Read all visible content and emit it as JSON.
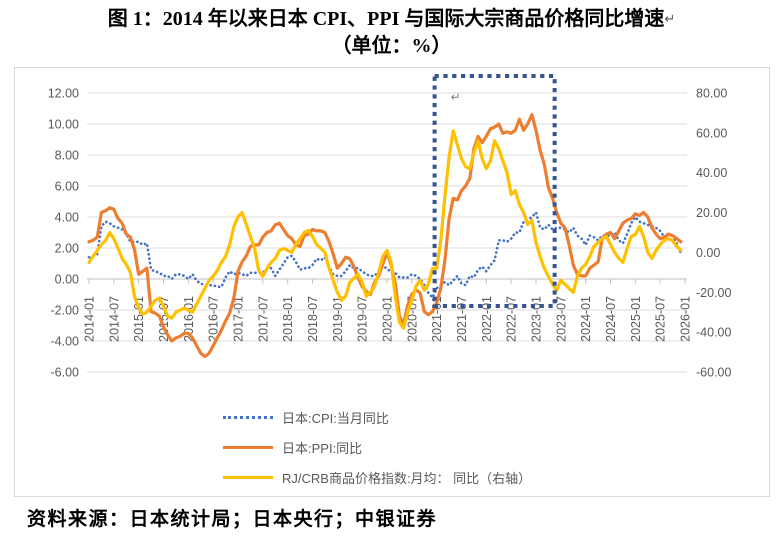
{
  "page": {
    "title_line1": "图 1：2014 年以来日本 CPI、PPI 与国际大宗商品价格同比增速",
    "title_return_mark": "↵",
    "title_line2": "（单位：%）",
    "source": "资料来源：日本统计局；日本央行；中银证券"
  },
  "colors": {
    "cpi": "#4472C4",
    "ppi": "#ED7D31",
    "crb": "#FFC000",
    "grid": "#DCDCDC",
    "axis_line": "#BFBFBF",
    "axis_text": "#595959",
    "highlight_box": "#35558F"
  },
  "chart_data": {
    "type": "line",
    "title": "2014年以来日本CPI、PPI与国际大宗商品价格同比增速（单位：%）",
    "x_monthly_start": "2014-01",
    "x_monthly_end": "2025-12",
    "x_tick_labels": [
      "2014-01",
      "2014-07",
      "2015-01",
      "2015-07",
      "2016-01",
      "2016-07",
      "2017-01",
      "2017-07",
      "2018-01",
      "2018-07",
      "2019-01",
      "2019-07",
      "2020-01",
      "2020-07",
      "2021-01",
      "2021-07",
      "2022-01",
      "2022-07",
      "2023-01",
      "2023-07",
      "2024-01",
      "2024-07",
      "2025-01",
      "2025-07",
      "2026-01"
    ],
    "left_axis": {
      "min": -6,
      "max": 12,
      "step": 2,
      "tick_labels": [
        "12.00",
        "10.00",
        "8.00",
        "6.00",
        "4.00",
        "2.00",
        "0.00",
        "-2.00",
        "-4.00",
        "-6.00"
      ]
    },
    "right_axis": {
      "min": -60,
      "max": 80,
      "step": 20,
      "tick_labels": [
        "80.00",
        "60.00",
        "40.00",
        "20.00",
        "0.00",
        "-20.00",
        "-40.00",
        "-60.00"
      ]
    },
    "grid": true,
    "legend_position": "bottom",
    "series": [
      {
        "key": "cpi",
        "name": "日本:CPI:当月同比",
        "axis": "left",
        "style": "dotted",
        "color": "#4472C4",
        "values": [
          1.4,
          1.5,
          1.6,
          3.4,
          3.7,
          3.6,
          3.4,
          3.3,
          3.2,
          2.9,
          2.4,
          2.4,
          2.4,
          2.2,
          2.3,
          0.6,
          0.5,
          0.4,
          0.2,
          0.2,
          0.0,
          0.3,
          0.3,
          0.2,
          0.0,
          0.3,
          -0.1,
          -0.3,
          -0.4,
          -0.4,
          -0.4,
          -0.5,
          -0.5,
          0.1,
          0.5,
          0.3,
          0.4,
          0.3,
          0.2,
          0.4,
          0.4,
          0.4,
          0.4,
          0.7,
          0.7,
          0.2,
          0.6,
          1.0,
          1.4,
          1.5,
          1.1,
          0.6,
          0.7,
          0.7,
          0.9,
          1.3,
          1.2,
          1.4,
          0.8,
          0.3,
          0.2,
          0.2,
          0.5,
          0.9,
          0.7,
          0.7,
          0.5,
          0.3,
          0.2,
          0.2,
          0.5,
          0.8,
          0.7,
          0.4,
          0.4,
          0.1,
          0.1,
          0.1,
          0.3,
          0.2,
          0.0,
          -0.4,
          -0.9,
          -1.2,
          -0.6,
          -0.4,
          -0.2,
          -0.4,
          -0.1,
          0.2,
          -0.3,
          -0.4,
          0.2,
          0.1,
          0.6,
          0.8,
          0.5,
          0.9,
          1.2,
          2.5,
          2.5,
          2.4,
          2.6,
          3.0,
          3.0,
          3.7,
          3.8,
          4.0,
          4.3,
          3.3,
          3.2,
          3.5,
          3.2,
          3.3,
          3.3,
          3.2,
          3.0,
          3.3,
          2.8,
          2.6,
          2.2,
          2.8,
          2.7,
          2.5,
          2.8,
          2.8,
          2.8,
          3.0,
          2.5,
          2.3,
          2.9,
          3.6,
          4.0,
          3.7,
          3.6,
          3.5,
          3.4,
          3.3,
          3.1,
          2.7,
          2.9,
          2.8,
          2.3,
          1.7
        ]
      },
      {
        "key": "ppi",
        "name": "日本:PPI:同比",
        "axis": "left",
        "style": "solid",
        "color": "#ED7D31",
        "values": [
          2.4,
          2.5,
          2.7,
          4.3,
          4.4,
          4.6,
          4.5,
          3.9,
          3.6,
          2.9,
          2.7,
          1.9,
          0.3,
          0.5,
          0.7,
          -2.1,
          -2.2,
          -2.4,
          -3.1,
          -3.6,
          -4.0,
          -3.8,
          -3.7,
          -3.5,
          -3.5,
          -3.8,
          -4.3,
          -4.8,
          -5.0,
          -4.8,
          -4.3,
          -3.8,
          -3.3,
          -2.7,
          -2.2,
          -1.2,
          0.5,
          1.1,
          1.5,
          2.1,
          2.2,
          2.2,
          2.7,
          3.0,
          3.1,
          3.5,
          3.6,
          3.2,
          2.8,
          2.6,
          2.2,
          2.1,
          2.8,
          2.9,
          3.2,
          3.1,
          3.1,
          3.0,
          2.4,
          1.6,
          0.7,
          1.0,
          1.4,
          1.3,
          0.8,
          0.1,
          -0.5,
          -0.8,
          -1.0,
          -0.2,
          0.2,
          1.0,
          1.7,
          0.9,
          -0.3,
          -2.4,
          -2.9,
          -1.7,
          -1.0,
          -0.7,
          -0.9,
          -2.1,
          -2.3,
          -2.1,
          -1.5,
          -0.6,
          1.2,
          3.9,
          5.2,
          5.1,
          5.7,
          6.0,
          6.5,
          8.4,
          9.2,
          8.8,
          9.2,
          9.7,
          9.8,
          10.0,
          9.4,
          9.5,
          9.4,
          9.6,
          10.3,
          9.6,
          10.0,
          10.6,
          9.6,
          8.3,
          7.4,
          5.9,
          5.2,
          4.3,
          3.6,
          3.3,
          2.2,
          0.9,
          0.3,
          0.2,
          0.2,
          0.7,
          0.9,
          1.1,
          2.6,
          2.9,
          3.0,
          2.6,
          3.1,
          3.6,
          3.8,
          3.9,
          4.2,
          4.1,
          4.3,
          4.0,
          3.3,
          2.9,
          2.6,
          2.7,
          2.9,
          2.8,
          2.6,
          2.4
        ]
      },
      {
        "key": "crb",
        "name": "RJ/CRB商品价格指数:月均： 同比（右轴）",
        "axis": "right",
        "style": "solid",
        "color": "#FFC000",
        "values": [
          -5,
          -2,
          1,
          4,
          6,
          10,
          7,
          2,
          -3,
          -6,
          -10,
          -22,
          -28,
          -31,
          -30,
          -27,
          -24,
          -23,
          -27,
          -32,
          -33,
          -30,
          -29,
          -28,
          -29,
          -30,
          -26,
          -22,
          -18,
          -14,
          -12,
          -9,
          -5,
          -2,
          4,
          13,
          18,
          20,
          14,
          8,
          2,
          -9,
          -12,
          -8,
          -5,
          -3,
          1,
          2,
          1,
          0,
          4,
          7,
          10,
          11,
          8,
          4,
          2,
          0,
          -8,
          -14,
          -20,
          -24,
          -22,
          -15,
          -13,
          -11,
          -15,
          -22,
          -20,
          -17,
          -10,
          -2,
          1,
          -5,
          -22,
          -35,
          -38,
          -30,
          -24,
          -17,
          -14,
          -19,
          -16,
          -8,
          -8,
          6,
          28,
          48,
          61,
          54,
          47,
          43,
          42,
          50,
          56,
          47,
          42,
          46,
          56,
          52,
          46,
          40,
          29,
          31,
          24,
          20,
          14,
          16,
          5,
          -2,
          -8,
          -12,
          -16,
          -19,
          -14,
          -16,
          -18,
          -20,
          -12,
          -8,
          -6,
          -2,
          3,
          5,
          7,
          8,
          4,
          0,
          -3,
          -5,
          2,
          8,
          9,
          13,
          8,
          0,
          -3,
          1,
          4,
          6,
          7,
          6,
          3,
          1
        ]
      }
    ],
    "annotation_box": {
      "x_from": "2020-12",
      "x_to": "2023-05",
      "y_top_left_axis": 13.2,
      "y_bottom_left_axis": -1.9,
      "return_mark": "↵"
    }
  }
}
